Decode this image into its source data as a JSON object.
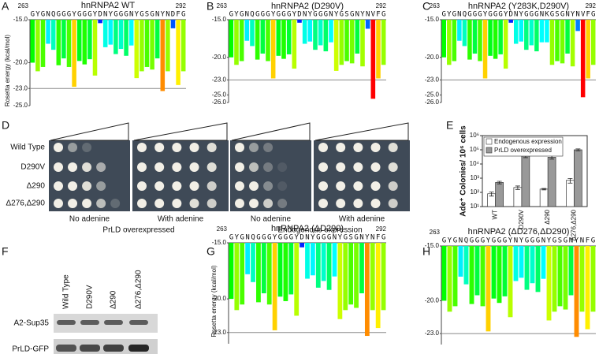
{
  "panel_labels": [
    "A",
    "B",
    "C",
    "D",
    "E",
    "F",
    "G",
    "H"
  ],
  "chart_data": [
    {
      "type": "bar",
      "title": "hnRNPA2 WT",
      "ylabel": "Rosetta energy (kcal/mol)",
      "x_start": 263,
      "x_end": 292,
      "categories": [
        "G",
        "Y",
        "G",
        "N",
        "Q",
        "G",
        "G",
        "G",
        "Y",
        "G",
        "G",
        "G",
        "Y",
        "D",
        "N",
        "Y",
        "G",
        "G",
        "G",
        "N",
        "Y",
        "G",
        "S",
        "G",
        "N",
        "Y",
        "N",
        "D",
        "F",
        "G"
      ],
      "values": [
        -20.0,
        -21.0,
        -20.5,
        -17.8,
        -18.5,
        -20.3,
        -19.5,
        -20.5,
        -22.8,
        -19.8,
        -20.2,
        -19.6,
        -21.5,
        -15.4,
        -18.2,
        -17.9,
        -19.0,
        -18.4,
        -19.2,
        -18.0,
        -21.8,
        -21.0,
        -20.5,
        -20.8,
        -19.5,
        -23.3,
        -21.0,
        -16.0,
        -22.6,
        -21.0
      ],
      "ylim": [
        -25,
        -15
      ],
      "yticks": [
        {
          "value": -15,
          "label": "-15.0"
        },
        {
          "value": -20,
          "label": "-20.0"
        },
        {
          "value": -23,
          "label": "-23.0"
        },
        {
          "value": -25,
          "label": "-25.0"
        }
      ],
      "hline": -23
    },
    {
      "type": "bar",
      "title": "hnRNPA2 (D290V)",
      "x_start": 263,
      "x_end": 292,
      "categories": [
        "G",
        "Y",
        "G",
        "N",
        "Q",
        "G",
        "G",
        "G",
        "Y",
        "G",
        "G",
        "G",
        "Y",
        "D",
        "N",
        "Y",
        "G",
        "G",
        "G",
        "N",
        "Y",
        "G",
        "S",
        "G",
        "N",
        "Y",
        "N",
        "V",
        "F",
        "G"
      ],
      "values": [
        -20.0,
        -21.0,
        -20.5,
        -17.8,
        -18.5,
        -20.3,
        -19.5,
        -20.5,
        -22.8,
        -19.8,
        -20.2,
        -19.6,
        -21.5,
        -15.4,
        -18.2,
        -17.9,
        -19.0,
        -18.4,
        -19.2,
        -18.0,
        -21.8,
        -21.0,
        -20.5,
        -20.8,
        -19.5,
        -21.2,
        -16.2,
        -25.5,
        -22.8,
        -21.0
      ],
      "ylim": [
        -26,
        -15
      ],
      "yticks": [
        {
          "value": -15,
          "label": "-15.0"
        },
        {
          "value": -20,
          "label": "-20.0"
        },
        {
          "value": -23,
          "label": "-23.0"
        },
        {
          "value": -25,
          "label": "-25.0"
        },
        {
          "value": -26,
          "label": "-26.0"
        }
      ],
      "hline": -23
    },
    {
      "type": "bar",
      "title": "hnRNPA2 (Y283K,D290V)",
      "x_start": 263,
      "x_end": 292,
      "categories": [
        "G",
        "Y",
        "G",
        "N",
        "Q",
        "G",
        "G",
        "G",
        "Y",
        "G",
        "G",
        "G",
        "Y",
        "D",
        "N",
        "Y",
        "G",
        "G",
        "G",
        "N",
        "K",
        "G",
        "S",
        "G",
        "N",
        "Y",
        "N",
        "V",
        "F",
        "G"
      ],
      "values": [
        -20.0,
        -21.0,
        -20.5,
        -17.8,
        -18.5,
        -20.3,
        -19.5,
        -20.5,
        -22.8,
        -19.8,
        -20.2,
        -19.6,
        -21.5,
        -15.4,
        -18.2,
        -17.9,
        -19.0,
        -18.4,
        -19.2,
        -18.0,
        -18.0,
        -21.0,
        -20.5,
        -20.8,
        -19.5,
        -21.2,
        -16.5,
        -25.3,
        -22.8,
        -21.0
      ],
      "ylim": [
        -26,
        -15
      ],
      "yticks": [
        {
          "value": -15,
          "label": "-15.0"
        },
        {
          "value": -20,
          "label": "-20.0"
        },
        {
          "value": -23,
          "label": "-23.0"
        },
        {
          "value": -25,
          "label": "-25.0"
        },
        {
          "value": -26,
          "label": "-26.0"
        }
      ],
      "hline": -23
    },
    {
      "type": "bar",
      "title": "hnRNPA2 (ΔD290)",
      "ylabel": "Rosetta energy (kcal/mol)",
      "x_start": 263,
      "x_end": 292,
      "categories": [
        "G",
        "Y",
        "G",
        "N",
        "Q",
        "G",
        "G",
        "G",
        "Y",
        "G",
        "G",
        "G",
        "Y",
        "D",
        "N",
        "Y",
        "G",
        "G",
        "G",
        "N",
        "Y",
        "G",
        "S",
        "G",
        "N",
        "Y",
        "N",
        "F",
        "G"
      ],
      "values": [
        -20.0,
        -21.0,
        -20.5,
        -17.8,
        -18.5,
        -20.3,
        -19.5,
        -20.5,
        -22.8,
        -19.8,
        -20.2,
        -19.6,
        -21.5,
        -15.4,
        -18.2,
        -17.9,
        -19.0,
        -18.4,
        -19.2,
        -18.0,
        -21.8,
        -21.0,
        -20.5,
        -20.8,
        -19.5,
        -23.3,
        -21.0,
        -22.6,
        -21.0
      ],
      "ylim": [
        -24,
        -15
      ],
      "yticks": [
        {
          "value": -15,
          "label": "-15.0"
        },
        {
          "value": -20,
          "label": "-20.0"
        },
        {
          "value": -23,
          "label": "-23.0"
        }
      ],
      "hline": -23
    },
    {
      "type": "bar",
      "title": "hnRNPA2 (ΔD276,ΔD290)",
      "x_start": 263,
      "categories": [
        "G",
        "Y",
        "G",
        "N",
        "Q",
        "G",
        "G",
        "G",
        "Y",
        "G",
        "G",
        "G",
        "Y",
        "N",
        "Y",
        "G",
        "G",
        "G",
        "N",
        "Y",
        "G",
        "S",
        "G",
        "N",
        "Y",
        "N",
        "F",
        "G"
      ],
      "values": [
        -20.0,
        -21.0,
        -20.5,
        -17.8,
        -18.5,
        -20.3,
        -19.5,
        -20.5,
        -22.8,
        -19.8,
        -20.2,
        -19.6,
        -21.5,
        -18.2,
        -17.9,
        -19.0,
        -18.4,
        -19.2,
        -18.0,
        -21.8,
        -21.0,
        -20.5,
        -20.8,
        -19.5,
        -23.3,
        -21.0,
        -22.6,
        -21.0
      ],
      "ylim": [
        -24,
        -15
      ],
      "yticks": [
        {
          "value": -15,
          "label": "-15.0"
        },
        {
          "value": -20,
          "label": "-20.0"
        },
        {
          "value": -23,
          "label": "-23.0"
        }
      ],
      "hline": -23
    },
    {
      "type": "groupedbar",
      "ylabel": "Ade⁺ Colonies/ 10⁶ cells",
      "log_scale": true,
      "categories": [
        "WT",
        "D290V",
        "Δ290",
        "Δ276,Δ290"
      ],
      "series": [
        {
          "name": "Endogenous expression",
          "color": "#ffffff",
          "values": [
            80,
            220,
            170,
            700
          ],
          "errors": [
            25,
            60,
            20,
            250
          ]
        },
        {
          "name": "PrLD overexpressed",
          "color": "#999999",
          "values": [
            500,
            40000,
            30000,
            100000
          ],
          "errors": [
            100,
            12000,
            8000,
            15000
          ]
        }
      ],
      "ylim": [
        10,
        1000000
      ],
      "yticks": [
        {
          "value": 10,
          "label": "10¹"
        },
        {
          "value": 100,
          "label": "10²"
        },
        {
          "value": 1000,
          "label": "10³"
        },
        {
          "value": 10000,
          "label": "10⁴"
        },
        {
          "value": 100000,
          "label": "10⁵"
        },
        {
          "value": 1000000,
          "label": "10⁶"
        }
      ]
    }
  ],
  "panel_d": {
    "rows": [
      "Wild Type",
      "D290V",
      "Δ290",
      "Δ276,Δ290"
    ],
    "plate_labels": [
      "No adenine",
      "With adenine",
      "No adenine",
      "With adenine"
    ],
    "group_labels": [
      "PrLD overexpressed",
      "Endogenous expression"
    ]
  },
  "panel_f": {
    "lanes": [
      "Wild Type",
      "D290V",
      "Δ290",
      "Δ276,Δ290"
    ],
    "rows": [
      "A2-Sup35",
      "PrLD-GFP"
    ]
  }
}
